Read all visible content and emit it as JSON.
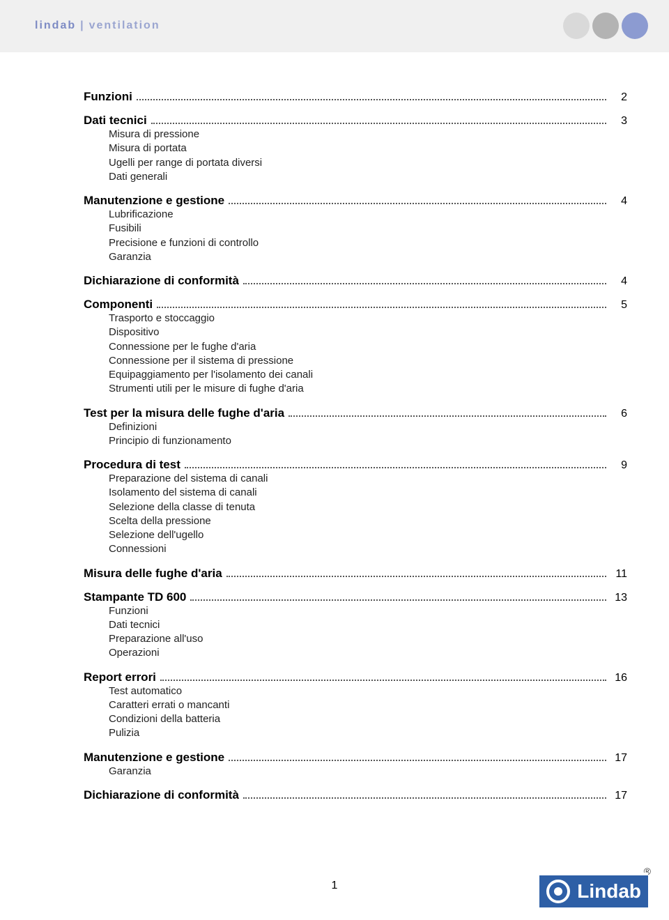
{
  "header": {
    "brand_part1": "lindab",
    "brand_pipe": "|",
    "brand_part2": "ventilation"
  },
  "colors": {
    "circle1": "#d9d9d9",
    "circle2": "#b3b3b3",
    "circle3": "#8c9bd1",
    "header_text1": "#7d8bc4",
    "header_text2": "#9aa5d0",
    "logo_bg": "#2e5fa6"
  },
  "toc": [
    {
      "title": "Funzioni",
      "page": "2",
      "sub": []
    },
    {
      "title": "Dati tecnici",
      "page": "3",
      "sub": [
        "Misura di pressione",
        "Misura di portata",
        "Ugelli per range di portata diversi",
        "Dati generali"
      ]
    },
    {
      "title": "Manutenzione e gestione",
      "page": "4",
      "sub": [
        "Lubrificazione",
        "Fusibili",
        "Precisione e funzioni di controllo",
        "Garanzia"
      ]
    },
    {
      "title": "Dichiarazione di conformità",
      "page": "4",
      "sub": []
    },
    {
      "title": "Componenti",
      "page": "5",
      "sub": [
        "Trasporto e stoccaggio",
        "Dispositivo",
        "Connessione per le fughe d'aria",
        "Connessione per il sistema di pressione",
        "Equipaggiamento per l'isolamento dei canali",
        "Strumenti utili per le misure di fughe d'aria"
      ]
    },
    {
      "title": "Test per la misura delle fughe d'aria",
      "page": "6",
      "sub": [
        "Definizioni",
        "Principio di funzionamento"
      ]
    },
    {
      "title": "Procedura di test",
      "page": "9",
      "sub": [
        "Preparazione del sistema di canali",
        "Isolamento del sistema di canali",
        "Selezione della classe di tenuta",
        "Scelta della pressione",
        "Selezione dell'ugello",
        "Connessioni"
      ]
    },
    {
      "title": "Misura delle fughe d'aria",
      "page": "11",
      "sub": []
    },
    {
      "title": "Stampante TD 600",
      "page": "13",
      "sub": [
        "Funzioni",
        "Dati tecnici",
        "Preparazione all'uso",
        "Operazioni"
      ]
    },
    {
      "title": "Report errori",
      "page": "16",
      "sub": [
        "Test automatico",
        "Caratteri errati o mancanti",
        "Condizioni della batteria",
        "Pulizia"
      ]
    },
    {
      "title": "Manutenzione e gestione",
      "page": "17",
      "sub": [
        "Garanzia"
      ]
    },
    {
      "title": "Dichiarazione di conformità",
      "page": "17",
      "sub": []
    }
  ],
  "footer": {
    "page_number": "1",
    "logo_text": "Lindab",
    "registered": "®"
  }
}
